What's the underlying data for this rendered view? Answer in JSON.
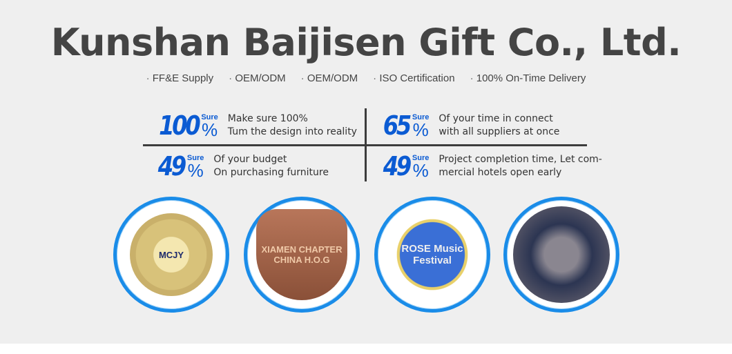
{
  "title": "Kunshan Baijisen Gift Co., Ltd.",
  "features": [
    "FF&E Supply",
    "OEM/ODM",
    "OEM/ODM",
    "ISO Certification",
    "100% On-Time Delivery"
  ],
  "stats": [
    {
      "value": "100",
      "sure": "Sure",
      "pct": "%",
      "line1": "Make sure 100%",
      "line2": "Tum the design into reality"
    },
    {
      "value": "65",
      "sure": "Sure",
      "pct": "%",
      "line1": "Of your time in connect",
      "line2": "with all suppliers at once"
    },
    {
      "value": "49",
      "sure": "Sure",
      "pct": "%",
      "line1": "Of your budget",
      "line2": "On purchasing furniture"
    },
    {
      "value": "49",
      "sure": "Sure",
      "pct": "%",
      "line1": "Project completion time, Let com-",
      "line2": "mercial hotels open early"
    }
  ],
  "products": [
    {
      "label": "MCJY"
    },
    {
      "label": "XIAMEN CHAPTER CHINA H.O.G"
    },
    {
      "label": "ROSE Music Festival"
    },
    {
      "label": ""
    }
  ],
  "colors": {
    "accent": "#0b5bd3",
    "ring": "#1a8ce8"
  }
}
